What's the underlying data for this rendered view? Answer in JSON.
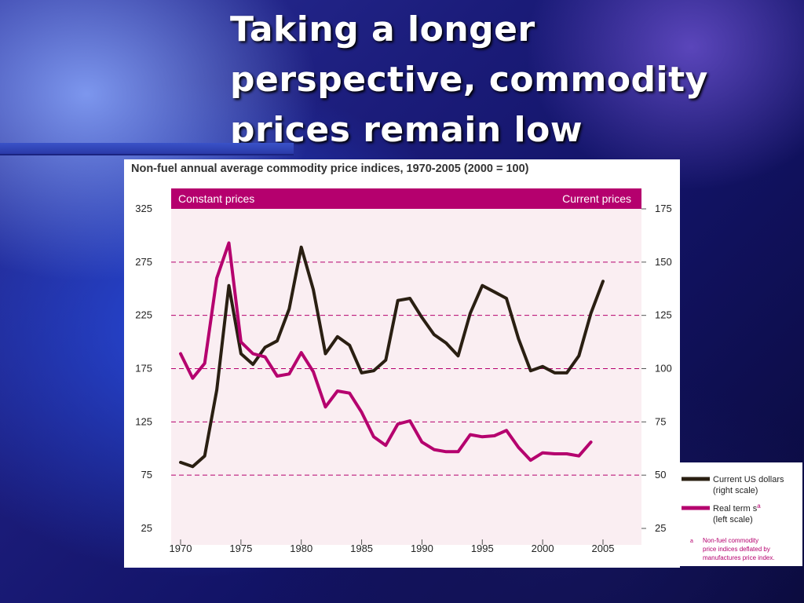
{
  "slide": {
    "title_lines": [
      "Taking a longer",
      "perspective, commodity",
      "prices remain low"
    ]
  },
  "colors": {
    "current_series": "#2a1f12",
    "real_series": "#b5006e",
    "panel_header": "#b5006e",
    "plot_background": "#faeef2",
    "gridline": "#b5006e"
  },
  "chart_data": {
    "type": "line",
    "title": "Non-fuel annual average commodity price indices, 1970-2005 (2000 = 100)",
    "left_header": "Constant prices",
    "right_header": "Current prices",
    "x": [
      1970,
      1971,
      1972,
      1973,
      1974,
      1975,
      1976,
      1977,
      1978,
      1979,
      1980,
      1981,
      1982,
      1983,
      1984,
      1985,
      1986,
      1987,
      1988,
      1989,
      1990,
      1991,
      1992,
      1993,
      1994,
      1995,
      1996,
      1997,
      1998,
      1999,
      2000,
      2001,
      2002,
      2003,
      2004,
      2005
    ],
    "x_ticks": [
      1970,
      1975,
      1980,
      1985,
      1990,
      1995,
      2000,
      2005
    ],
    "left_ticks": [
      325,
      275,
      225,
      175,
      125,
      75,
      25
    ],
    "right_ticks": [
      175,
      150,
      125,
      100,
      75,
      50,
      25
    ],
    "ylim_left": [
      25,
      325
    ],
    "ylim_right": [
      25,
      175
    ],
    "grid": true,
    "series": [
      {
        "name": "Current US dollars",
        "name_line2": "(right scale)",
        "axis": "right",
        "color": "#2a1f12",
        "x": [
          1970,
          1971,
          1972,
          1973,
          1974,
          1975,
          1976,
          1977,
          1978,
          1979,
          1980,
          1981,
          1982,
          1983,
          1984,
          1985,
          1986,
          1987,
          1988,
          1989,
          1990,
          1991,
          1992,
          1993,
          1994,
          1995,
          1996,
          1997,
          1998,
          1999,
          2000,
          2001,
          2002,
          2003,
          2004,
          2005
        ],
        "values": [
          56,
          54,
          59,
          90,
          139,
          107,
          102,
          110,
          113,
          128,
          157,
          137,
          107,
          115,
          111,
          98,
          99,
          104,
          132,
          133,
          124,
          116,
          112,
          106,
          126,
          139,
          136,
          133,
          114,
          99,
          101,
          98,
          98,
          106,
          126,
          141
        ]
      },
      {
        "name": "Real term s",
        "name_superscript": "a",
        "name_line2": "(left scale)",
        "axis": "left",
        "color": "#b5006e",
        "x": [
          1970,
          1971,
          1972,
          1973,
          1974,
          1975,
          1976,
          1977,
          1978,
          1979,
          1980,
          1981,
          1982,
          1983,
          1984,
          1985,
          1986,
          1987,
          1988,
          1989,
          1990,
          1991,
          1992,
          1993,
          1994,
          1995,
          1996,
          1997,
          1998,
          1999,
          2000,
          2001,
          2002,
          2003,
          2004
        ],
        "values": [
          189,
          166,
          180,
          260,
          293,
          200,
          189,
          186,
          168,
          170,
          190,
          172,
          139,
          154,
          152,
          134,
          111,
          103,
          123,
          126,
          106,
          99,
          97,
          97,
          113,
          111,
          112,
          117,
          101,
          89,
          96,
          95,
          95,
          93,
          106
        ]
      }
    ],
    "footnote_marker": "a",
    "footnote": [
      "Non-fuel commodity",
      "price indices deflated by",
      "manufactures price index."
    ]
  }
}
